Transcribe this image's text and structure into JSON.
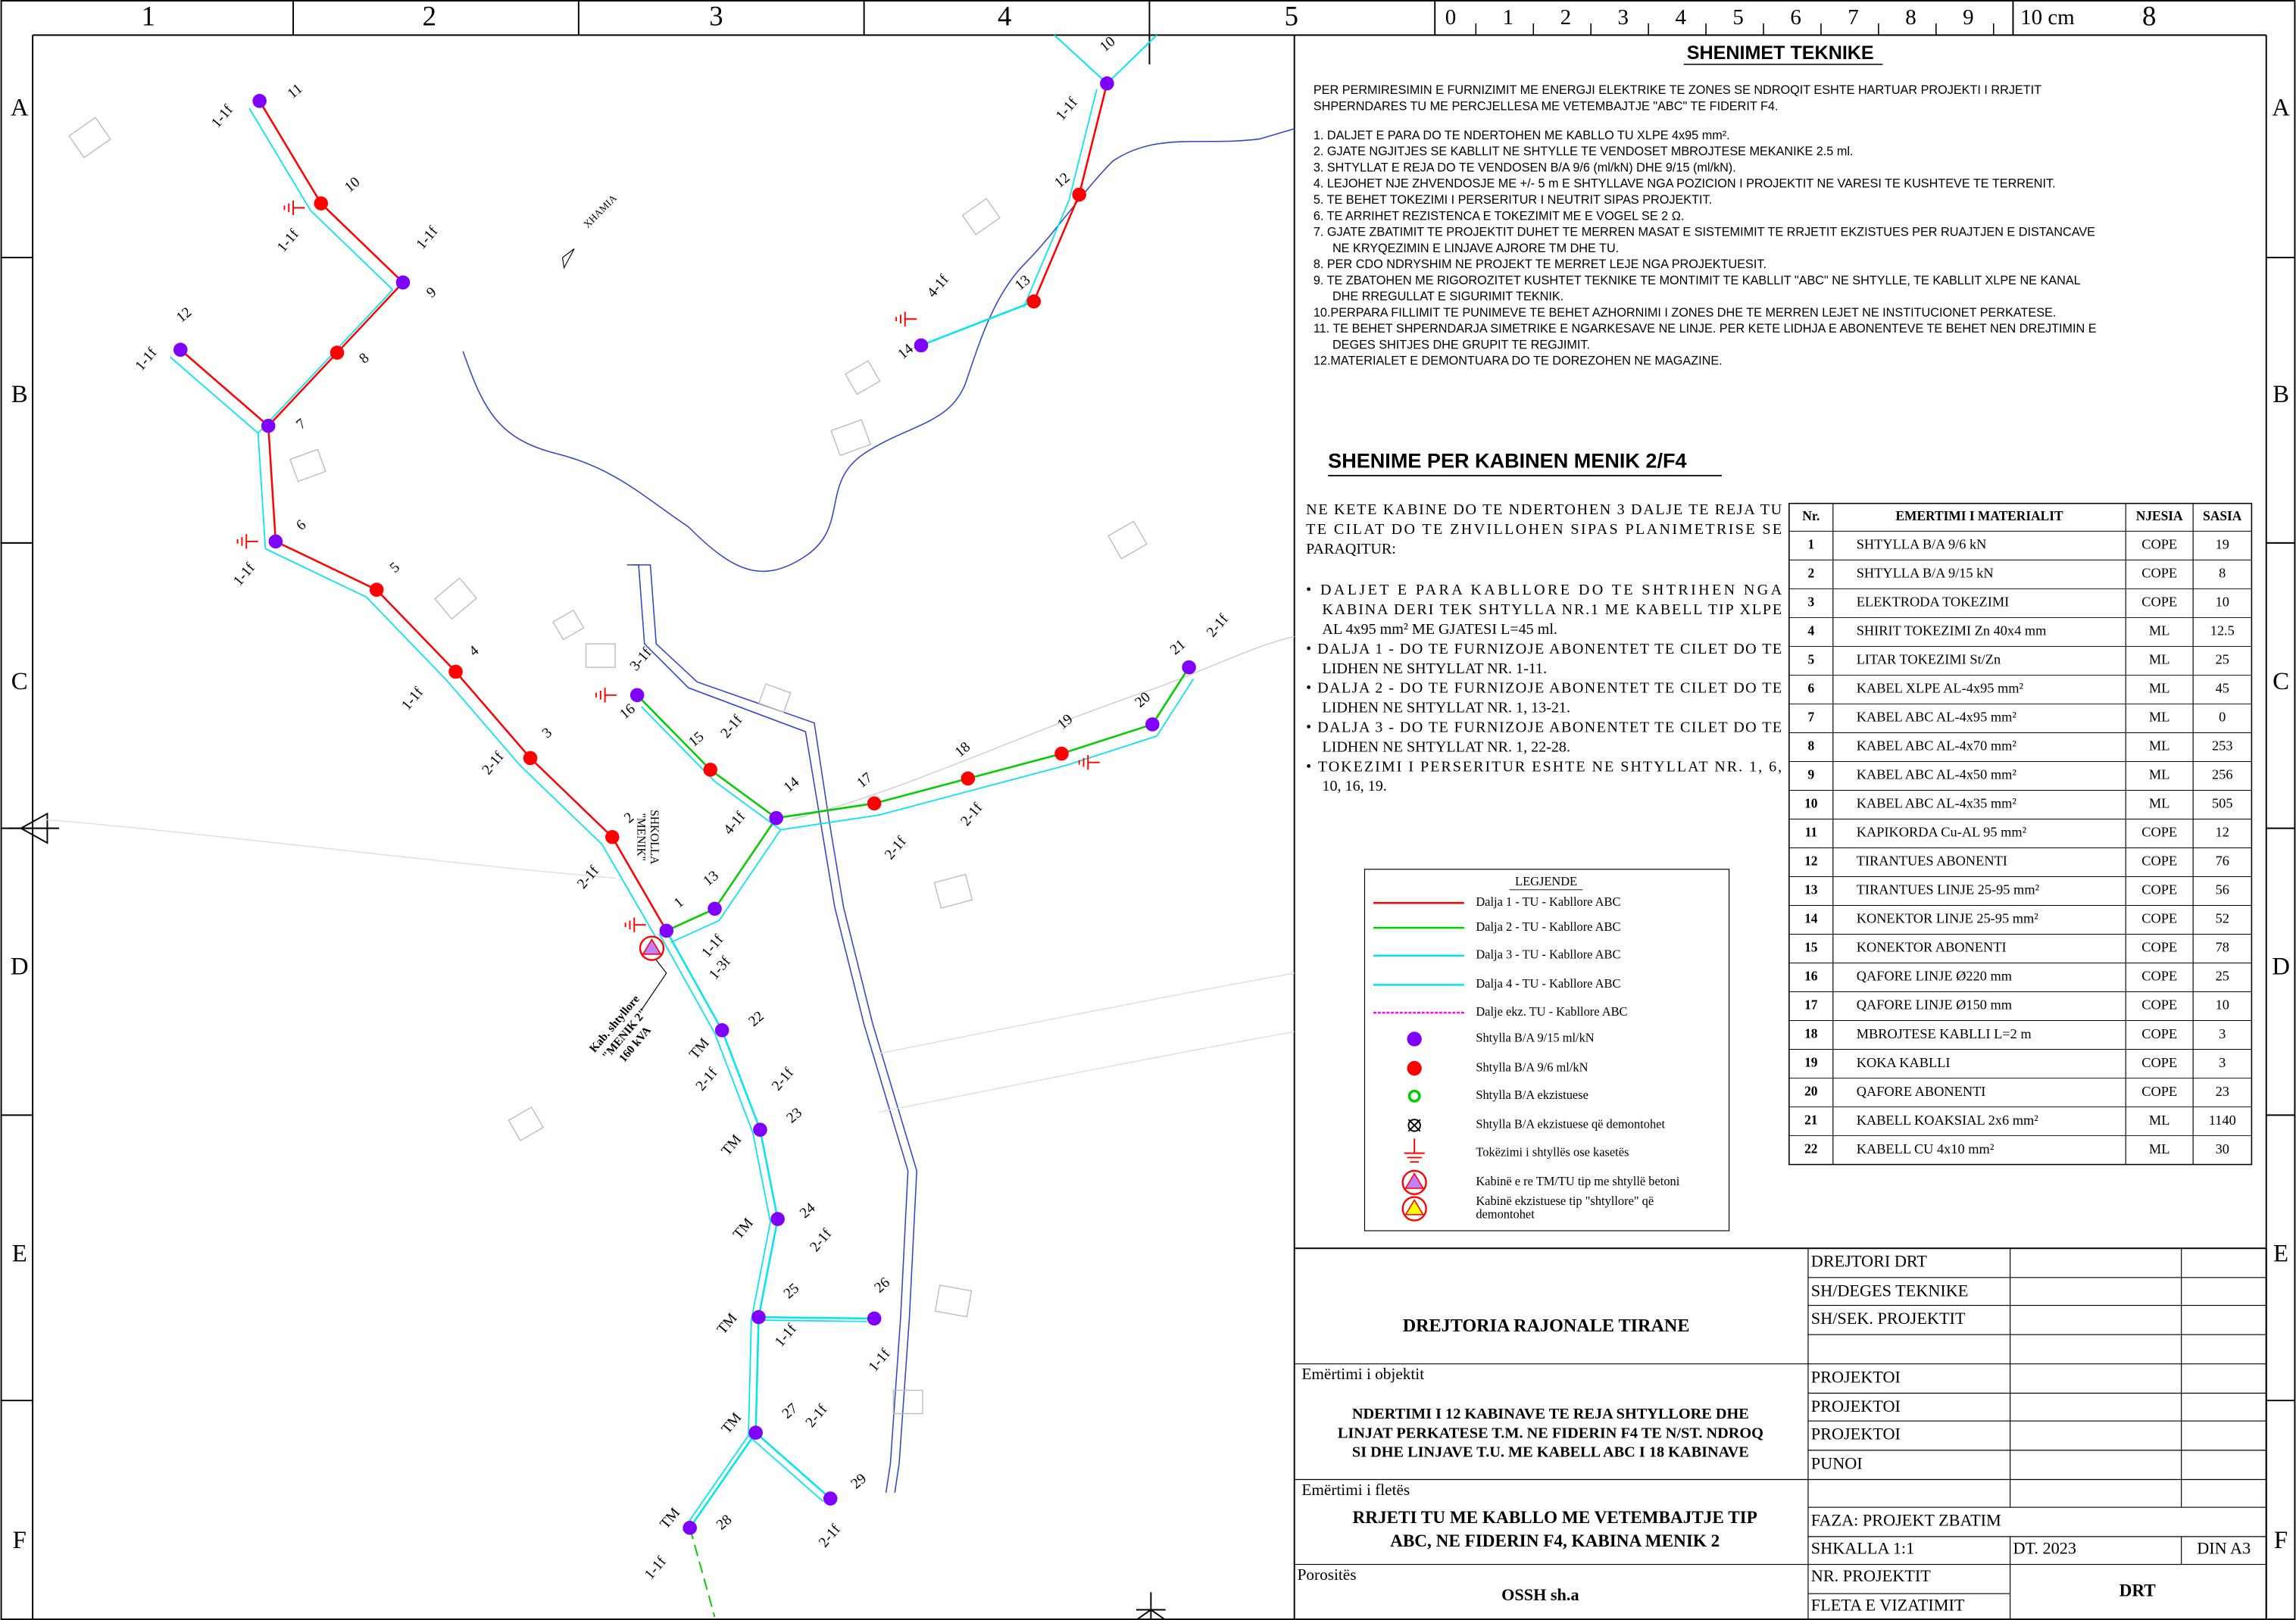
{
  "frame": {
    "columns": [
      "1",
      "2",
      "3",
      "4",
      "5"
    ],
    "rows": [
      "A",
      "B",
      "C",
      "D",
      "E",
      "F"
    ],
    "scale": [
      "0",
      "1",
      "2",
      "3",
      "4",
      "5",
      "6",
      "7",
      "8",
      "9",
      "10 cm"
    ],
    "sheet_column": "8"
  },
  "notes": {
    "title": "SHENIMET TEKNIKE",
    "intro": [
      "PER PERMIRESIMIN E FURNIZIMIT ME ENERGJI ELEKTRIKE TE ZONES SE NDROQIT ESHTE HARTUAR PROJEKTI I RRJETIT",
      "SHPERNDARES TU ME PERCJELLESA ME VETEMBAJTJE \"ABC\" TE FIDERIT F4."
    ],
    "items": [
      [
        "1.  DALJET E PARA DO TE NDERTOHEN ME KABLLO TU XLPE 4x95 mm²."
      ],
      [
        "2.  GJATE NGJITJES SE KABLLIT NE SHTYLLE TE VENDOSET MBROJTESE MEKANIKE 2.5 ml."
      ],
      [
        "3.  SHTYLLAT E REJA DO TE VENDOSEN B/A 9/6 (ml/kN) DHE 9/15 (ml/kN)."
      ],
      [
        "4.  LEJOHET NJE ZHVENDOSJE ME +/- 5 m E SHTYLLAVE NGA POZICION I PROJEKTIT NE VARESI TE KUSHTEVE TE TERRENIT."
      ],
      [
        "5.  TE BEHET TOKEZIMI I PERSERITUR I NEUTRIT SIPAS PROJEKTIT."
      ],
      [
        "6.  TE ARRIHET REZISTENCA E TOKEZIMIT ME E VOGEL SE 2 Ω."
      ],
      [
        "7.  GJATE ZBATIMIT TE PROJEKTIT DUHET TE MERREN MASAT E SISTEMIMIT TE RRJETIT EKZISTUES PER RUAJTJEN E DISTANCAVE",
        "NE KRYQEZIMIN E LINJAVE AJRORE TM DHE TU."
      ],
      [
        "8.  PER CDO NDRYSHIM NE PROJEKT TE MERRET LEJE NGA PROJEKTUESIT."
      ],
      [
        "9.  TE ZBATOHEN ME RIGOROZITET KUSHTET TEKNIKE TE MONTIMIT TE KABLLIT \"ABC\" NE SHTYLLE, TE KABLLIT XLPE NE KANAL",
        "DHE RREGULLAT E SIGURIMIT TEKNIK."
      ],
      [
        "10.PERPARA FILLIMIT TE PUNIMEVE TE BEHET AZHORNIMI I ZONES DHE TE MERREN LEJET NE INSTITUCIONET PERKATESE."
      ],
      [
        "11. TE BEHET SHPERNDARJA SIMETRIKE E NGARKESAVE NE LINJE. PER KETE LIDHJA E ABONENTEVE TE BEHET NEN DREJTIMIN E",
        "DEGES SHITJES DHE GRUPIT TE REGJIMIT."
      ],
      [
        "12.MATERIALET E DEMONTUARA DO TE DOREZOHEN NE MAGAZINE."
      ]
    ]
  },
  "cabin_notes": {
    "title": "SHENIME PER KABINEN MENIK 2/F4",
    "paragraph": [
      "NE KETE KABINE DO TE NDERTOHEN 3 DALJE TE REJA TU",
      "TE CILAT DO TE ZHVILLOHEN SIPAS PLANIMETRISE SE",
      "PARAQITUR:"
    ],
    "bullets": [
      [
        "• DALJET E PARA KABLLORE DO TE SHTRIHEN NGA",
        "KABINA DERI TEK SHTYLLA NR.1 ME KABELL TIP XLPE",
        "AL 4x95 mm² ME GJATESI L=45 ml."
      ],
      [
        "• DALJA 1 - DO TE FURNIZOJE ABONENTET TE CILET DO TE",
        "LIDHEN NE SHTYLLAT NR. 1-11."
      ],
      [
        "• DALJA 2 - DO TE FURNIZOJE ABONENTET TE CILET DO TE",
        "LIDHEN NE SHTYLLAT NR. 1, 13-21."
      ],
      [
        "• DALJA 3 - DO TE FURNIZOJE ABONENTET TE CILET DO TE",
        "LIDHEN NE SHTYLLAT NR. 1, 22-28."
      ],
      [
        "• TOKEZIMI I PERSERITUR ESHTE NE SHTYLLAT NR. 1, 6,",
        "10, 16, 19."
      ]
    ]
  },
  "materials": {
    "headers": [
      "Nr.",
      "EMERTIMI I MATERIALIT",
      "NJESIA",
      "SASIA"
    ],
    "rows": [
      [
        1,
        "SHTYLLA B/A 9/6 kN",
        "COPE",
        19
      ],
      [
        2,
        "SHTYLLA B/A 9/15 kN",
        "COPE",
        8
      ],
      [
        3,
        "ELEKTRODA TOKEZIMI",
        "COPE",
        10
      ],
      [
        4,
        "SHIRIT TOKEZIMI Zn 40x4 mm",
        "ML",
        12.5
      ],
      [
        5,
        "LITAR TOKEZIMI St/Zn",
        "ML",
        25
      ],
      [
        6,
        "KABEL XLPE AL-4x95 mm²",
        "ML",
        45
      ],
      [
        7,
        "KABEL ABC AL-4x95 mm²",
        "ML",
        0
      ],
      [
        8,
        "KABEL ABC AL-4x70 mm²",
        "ML",
        253
      ],
      [
        9,
        "KABEL ABC AL-4x50 mm²",
        "ML",
        256
      ],
      [
        10,
        "KABEL ABC AL-4x35 mm²",
        "ML",
        505
      ],
      [
        11,
        "KAPIKORDA Cu-AL 95 mm²",
        "COPE",
        12
      ],
      [
        12,
        "TIRANTUES ABONENTI",
        "COPE",
        76
      ],
      [
        13,
        "TIRANTUES LINJE 25-95 mm²",
        "COPE",
        56
      ],
      [
        14,
        "KONEKTOR LINJE 25-95 mm²",
        "COPE",
        52
      ],
      [
        15,
        "KONEKTOR ABONENTI",
        "COPE",
        78
      ],
      [
        16,
        "QAFORE LINJE Ø220 mm",
        "COPE",
        25
      ],
      [
        17,
        "QAFORE LINJE Ø150 mm",
        "COPE",
        10
      ],
      [
        18,
        "MBROJTESE KABLLI L=2 m",
        "COPE",
        3
      ],
      [
        19,
        "KOKA KABLLI",
        "COPE",
        3
      ],
      [
        20,
        "QAFORE ABONENTI",
        "COPE",
        23
      ],
      [
        21,
        "KABELL KOAKSIAL 2x6 mm²",
        "ML",
        1140
      ],
      [
        22,
        "KABELL CU 4x10 mm²",
        "ML",
        30
      ]
    ]
  },
  "legend": {
    "title": "LEGJENDE",
    "items": [
      {
        "symbol": "line",
        "color": "#ff0000",
        "label": [
          "Dalja 1 - TU - Kabllore ABC"
        ]
      },
      {
        "symbol": "line",
        "color": "#00cc00",
        "label": [
          "Dalja 2 - TU - Kabllore ABC"
        ]
      },
      {
        "symbol": "line",
        "color": "#00e5ee",
        "label": [
          "Dalja 3 - TU - Kabllore ABC"
        ]
      },
      {
        "symbol": "line",
        "color": "#00e5ee",
        "label": [
          "Dalja 4 - TU - Kabllore ABC"
        ]
      },
      {
        "symbol": "dashed",
        "color": "#ff00ff",
        "label": [
          "Dalje ekz. TU - Kabllore ABC"
        ]
      },
      {
        "symbol": "dot",
        "color": "#8000ff",
        "label": [
          "Shtylla B/A 9/15 ml/kN"
        ]
      },
      {
        "symbol": "dot",
        "color": "#ff0000",
        "label": [
          "Shtylla B/A 9/6 ml/kN"
        ]
      },
      {
        "symbol": "ring",
        "color": "#00cc00",
        "label": [
          "Shtylla B/A ekzistuese"
        ]
      },
      {
        "symbol": "cross",
        "color": "#000000",
        "label": [
          "Shtylla B/A ekzistuese që demontohet"
        ]
      },
      {
        "symbol": "earth",
        "color": "#ff0000",
        "label": [
          "Tokëzimi i shtyllës ose kasetës"
        ]
      },
      {
        "symbol": "cabin",
        "color": "#ff0000",
        "label": [
          "Kabinë e re TM/TU tip me shtyllë betoni"
        ]
      },
      {
        "symbol": "cabin-old",
        "color": "#ff0000",
        "label": [
          "Kabinë ekzistuese tip \"shtyllore\" që",
          "demontohet"
        ]
      }
    ]
  },
  "map": {
    "poles": [
      {
        "number": 1,
        "color": "#8000ff"
      },
      {
        "number": 2,
        "color": "#ff0000"
      },
      {
        "number": 3,
        "color": "#ff0000"
      },
      {
        "number": 4,
        "color": "#ff0000"
      },
      {
        "number": 5,
        "color": "#ff0000"
      },
      {
        "number": 6,
        "color": "#8000ff"
      },
      {
        "number": 7,
        "color": "#8000ff"
      },
      {
        "number": 8,
        "color": "#ff0000"
      },
      {
        "number": 9,
        "color": "#8000ff"
      },
      {
        "number": 10,
        "color": "#ff0000"
      },
      {
        "number": 11,
        "color": "#8000ff"
      },
      {
        "number": 12,
        "color": "#8000ff"
      },
      {
        "number": 13,
        "color": "#8000ff"
      },
      {
        "number": 14,
        "color": "#8000ff"
      },
      {
        "number": 15,
        "color": "#ff0000"
      },
      {
        "number": 16,
        "color": "#8000ff"
      },
      {
        "number": 17,
        "color": "#ff0000"
      },
      {
        "number": 18,
        "color": "#ff0000"
      },
      {
        "number": 19,
        "color": "#ff0000"
      },
      {
        "number": 20,
        "color": "#8000ff"
      },
      {
        "number": 21,
        "color": "#8000ff"
      },
      {
        "number": 22,
        "color": "#8000ff"
      },
      {
        "number": 23,
        "color": "#8000ff"
      },
      {
        "number": 24,
        "color": "#8000ff"
      },
      {
        "number": 25,
        "color": "#8000ff"
      },
      {
        "number": 26,
        "color": "#8000ff"
      },
      {
        "number": 27,
        "color": "#8000ff"
      },
      {
        "number": 28,
        "color": "#8000ff"
      },
      {
        "number": 29,
        "color": "#8000ff"
      },
      {
        "number": 10,
        "color": "#8000ff"
      },
      {
        "number": 12,
        "color": "#ff0000"
      },
      {
        "number": 13,
        "color": "#ff0000"
      },
      {
        "number": 14,
        "color": "#8000ff"
      }
    ],
    "tags": [
      "1-1f",
      "1-1f",
      "1-1f",
      "1-1f",
      "1-1f",
      "1-1f",
      "2-1f",
      "2-1f",
      "3-1f",
      "2-1f",
      "4-1f",
      "1-1f",
      "1-3f",
      "2-1f",
      "2-1f",
      "2-1f",
      "2-1f",
      "2-1f",
      "2-1f",
      "1-1f",
      "2-1f",
      "1-1f",
      "2-1f",
      "1-1f",
      "1-1f",
      "4-1f"
    ],
    "tm_labels": [
      "TM",
      "TM",
      "TM",
      "TM",
      "TM",
      "TM"
    ],
    "mosque": "XHAMIA",
    "school": [
      "SHKOLLA",
      "\"MENIK\""
    ],
    "cabin": [
      "Kab. shtyllore",
      "\"MENIK 2\"",
      "160 kVA"
    ]
  },
  "title_block": {
    "organization": "DREJTORIA RAJONALE TIRANE",
    "object_caption": "Emërtimi i objektit",
    "object": [
      "NDERTIMI I 12 KABINAVE TE REJA SHTYLLORE DHE",
      "LINJAT PERKATESE T.M. NE FIDERIN F4 TE N/ST. NDROQ",
      "SI DHE LINJAVE T.U. ME KABELL ABC I 18 KABINAVE"
    ],
    "sheet_caption": "Emërtimi i fletës",
    "sheet": [
      "RRJETI TU ME KABLLO ME VETEMBAJTJE TIP",
      "ABC, NE FIDERIN F4, KABINA MENIK 2"
    ],
    "client_caption": "Porositës",
    "client": "OSSH sh.a",
    "roles": [
      "DREJTORI DRT",
      "SH/DEGES TEKNIKE",
      "SH/SEK. PROJEKTIT",
      "PROJEKTOI",
      "PROJEKTOI",
      "PROJEKTOI",
      "PUNOI"
    ],
    "phase": "FAZA: PROJEKT ZBATIM",
    "scale": "SHKALLA 1:1",
    "date": "DT. 2023",
    "format": "DIN A3",
    "project_no": "NR. PROJEKTIT",
    "drawing_sheet": "FLETA E VIZATIMIT",
    "author": "DRT"
  }
}
